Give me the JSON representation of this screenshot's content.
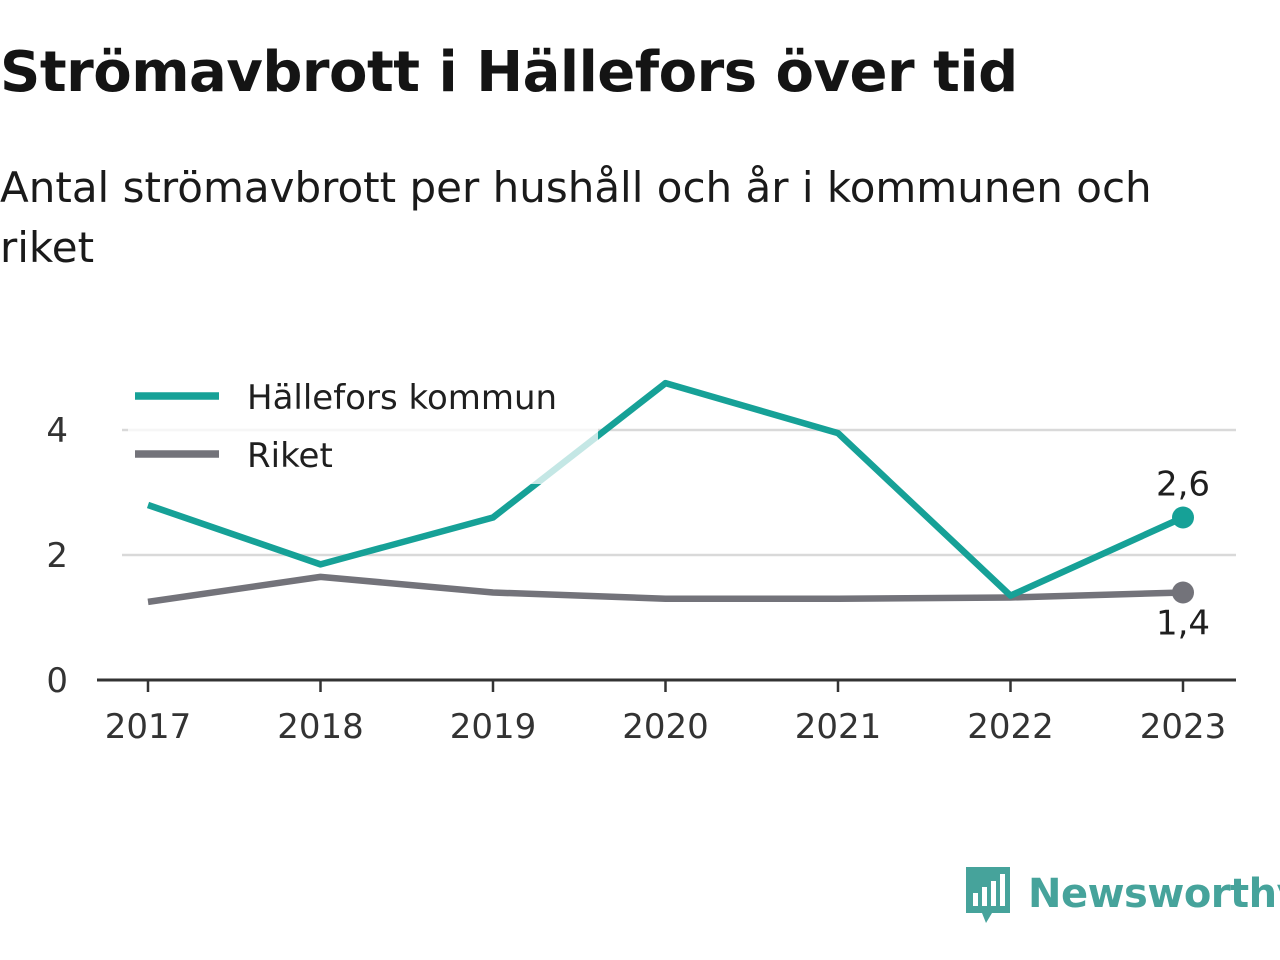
{
  "colors": {
    "kommun": "#16a197",
    "riket": "#73737a",
    "grid": "#d9d9d9",
    "axis": "#333333",
    "brand": "#46a39b"
  },
  "chart_data": {
    "type": "line",
    "title": "Strömavbrott i Hällefors över tid",
    "subtitle": "Antal strömavbrott per hushåll och år i kommunen och riket",
    "categories": [
      "2017",
      "2018",
      "2019",
      "2020",
      "2021",
      "2022",
      "2023"
    ],
    "y_ticks": [
      "0",
      "2",
      "4"
    ],
    "ylim": [
      0,
      4.8
    ],
    "grid": true,
    "legend_position": "top-left",
    "series": [
      {
        "name": "Hällefors kommun",
        "color": "#16a197",
        "values": [
          2.8,
          1.85,
          2.6,
          4.75,
          3.95,
          1.35,
          2.6
        ],
        "end_label": "2,6"
      },
      {
        "name": "Riket",
        "color": "#73737a",
        "values": [
          1.25,
          1.65,
          1.4,
          1.3,
          1.3,
          1.32,
          1.4
        ],
        "end_label": "1,4"
      }
    ]
  },
  "brand": {
    "name": "Newsworthy",
    "logo_icon": "bar-chart-speech-bubble-icon"
  }
}
